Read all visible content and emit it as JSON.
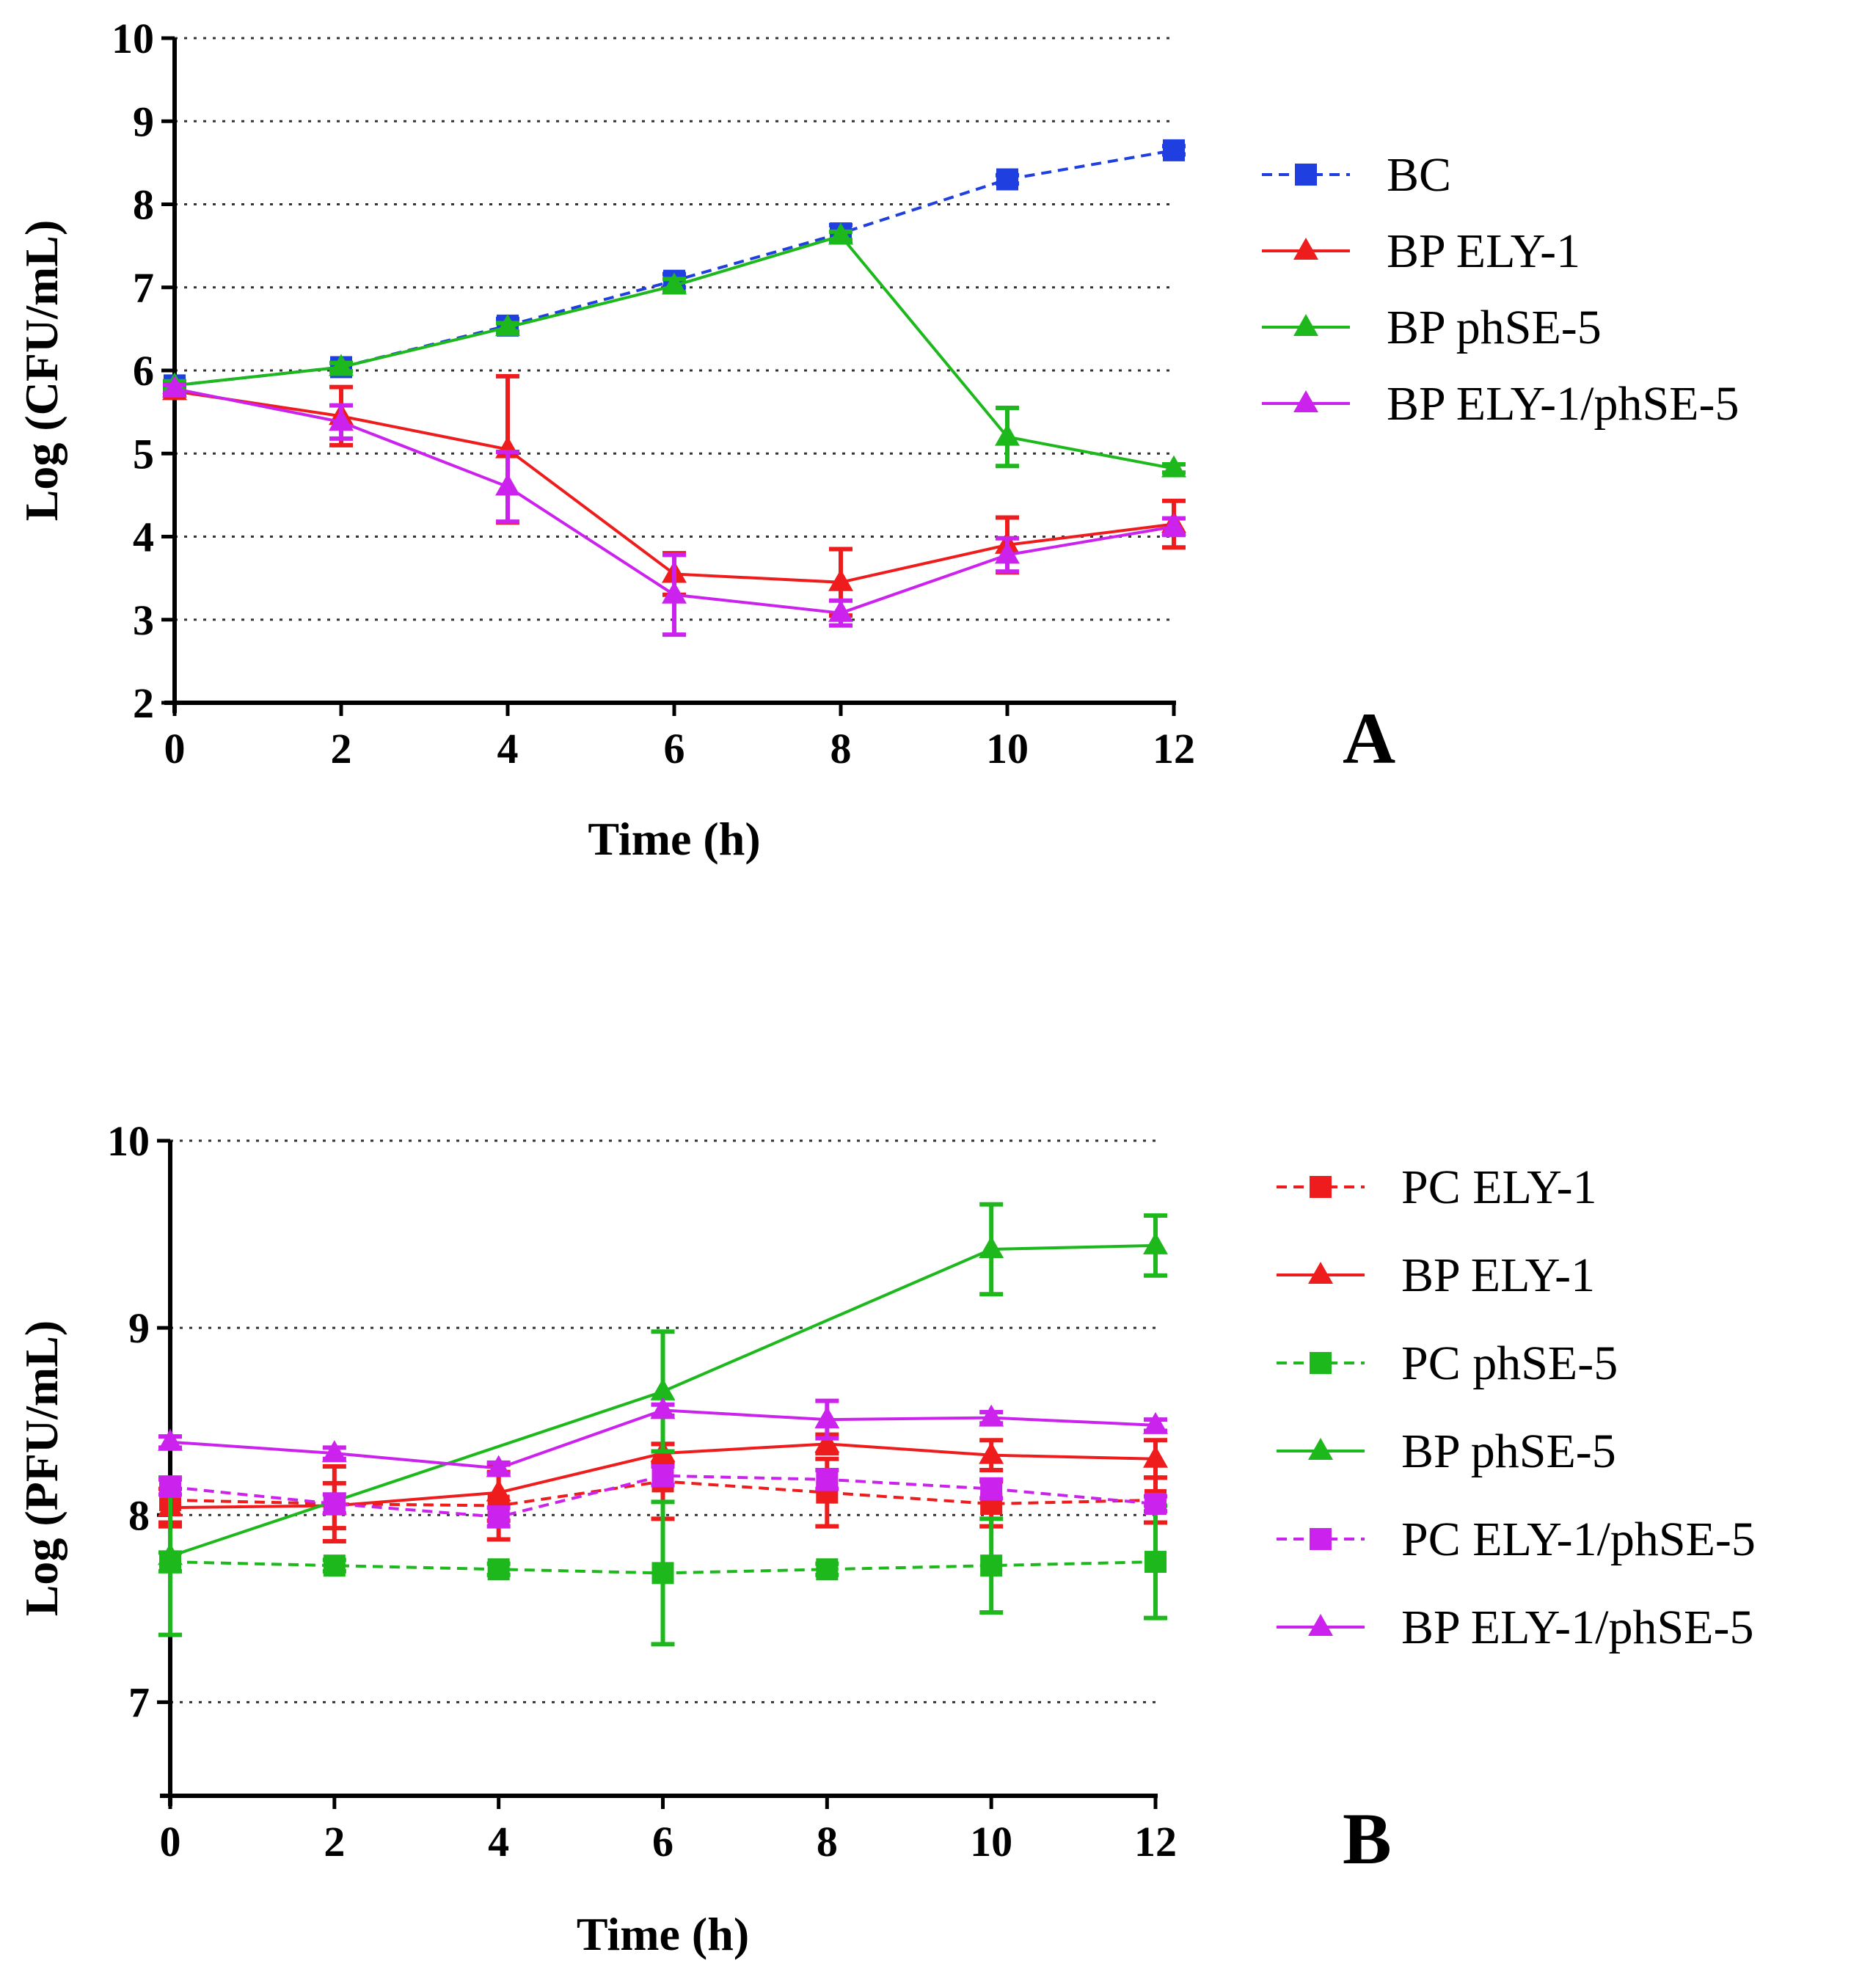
{
  "chart_data": [
    {
      "type": "line",
      "panel_label": "A",
      "title": "",
      "xlabel": "Time (h)",
      "ylabel": "Log (CFU/mL)",
      "xlim": [
        0,
        12
      ],
      "ylim": [
        2,
        10
      ],
      "xticks": [
        0,
        2,
        4,
        6,
        8,
        10,
        12
      ],
      "yticks": [
        2,
        3,
        4,
        5,
        6,
        7,
        8,
        9,
        10
      ],
      "grid": "horizontal dotted",
      "legend_position": "right",
      "series": [
        {
          "name": "BC",
          "color": "#1f3fe0",
          "dashed": true,
          "marker": "square",
          "x": [
            0,
            2,
            4,
            6,
            8,
            10,
            12
          ],
          "values": [
            5.82,
            6.04,
            6.54,
            7.08,
            7.65,
            8.3,
            8.65
          ],
          "err": [
            0.05,
            0.05,
            0.08,
            0.08,
            0.1,
            0.05,
            0.05
          ]
        },
        {
          "name": "BP ELY-1",
          "color": "#ee1c1c",
          "dashed": false,
          "marker": "triangle",
          "x": [
            0,
            2,
            4,
            6,
            8,
            10,
            12
          ],
          "values": [
            5.75,
            5.45,
            5.05,
            3.55,
            3.45,
            3.9,
            4.15
          ],
          "err": [
            0.05,
            0.35,
            0.88,
            0.25,
            0.4,
            0.33,
            0.28
          ]
        },
        {
          "name": "BP phSE-5",
          "color": "#1cb81c",
          "dashed": false,
          "marker": "triangle",
          "x": [
            0,
            2,
            4,
            6,
            8,
            10,
            12
          ],
          "values": [
            5.82,
            6.04,
            6.52,
            7.02,
            7.62,
            5.2,
            4.82
          ],
          "err": [
            0.05,
            0.05,
            0.05,
            0.08,
            0.05,
            0.35,
            0.05
          ]
        },
        {
          "name": "BP ELY-1/phSE-5",
          "color": "#cc22ee",
          "dashed": false,
          "marker": "triangle",
          "x": [
            0,
            2,
            4,
            6,
            8,
            10,
            12
          ],
          "values": [
            5.78,
            5.38,
            4.6,
            3.3,
            3.08,
            3.78,
            4.12
          ],
          "err": [
            0.05,
            0.2,
            0.42,
            0.48,
            0.15,
            0.2,
            0.1
          ]
        }
      ]
    },
    {
      "type": "line",
      "panel_label": "B",
      "title": "",
      "xlabel": "Time (h)",
      "ylabel": "Log (PFU/mL)",
      "xlim": [
        0,
        12
      ],
      "ylim": [
        6.5,
        10
      ],
      "xticks": [
        0,
        2,
        4,
        6,
        8,
        10,
        12
      ],
      "yticks": [
        7,
        8,
        9,
        10
      ],
      "grid": "horizontal dotted",
      "legend_position": "right",
      "series": [
        {
          "name": "PC ELY-1",
          "color": "#ee1c1c",
          "dashed": true,
          "marker": "square",
          "x": [
            0,
            2,
            4,
            6,
            8,
            10,
            12
          ],
          "values": [
            8.08,
            8.06,
            8.05,
            8.18,
            8.12,
            8.06,
            8.08
          ],
          "err": [
            0.12,
            0.2,
            0.18,
            0.2,
            0.18,
            0.12,
            0.12
          ]
        },
        {
          "name": "BP ELY-1",
          "color": "#ee1c1c",
          "dashed": false,
          "marker": "triangle",
          "x": [
            0,
            2,
            4,
            6,
            8,
            10,
            12
          ],
          "values": [
            8.04,
            8.05,
            8.12,
            8.33,
            8.38,
            8.32,
            8.3
          ],
          "err": [
            0.1,
            0.12,
            0.15,
            0.05,
            0.05,
            0.08,
            0.1
          ]
        },
        {
          "name": "PC phSE-5",
          "color": "#1cb81c",
          "dashed": true,
          "marker": "square",
          "x": [
            0,
            2,
            4,
            6,
            8,
            10,
            12
          ],
          "values": [
            7.75,
            7.73,
            7.71,
            7.69,
            7.71,
            7.73,
            7.75
          ],
          "err": [
            0.05,
            0.03,
            0.03,
            0.38,
            0.03,
            0.25,
            0.3
          ]
        },
        {
          "name": "BP phSE-5",
          "color": "#1cb81c",
          "dashed": false,
          "marker": "triangle",
          "x": [
            0,
            6,
            10,
            12
          ],
          "values": [
            7.78,
            8.66,
            9.42,
            9.44
          ],
          "err": [
            0.42,
            0.32,
            0.24,
            0.16
          ]
        },
        {
          "name": "PC ELY-1/phSE-5",
          "color": "#cc22ee",
          "dashed": true,
          "marker": "square",
          "x": [
            0,
            2,
            4,
            6,
            8,
            10,
            12
          ],
          "values": [
            8.15,
            8.06,
            7.99,
            8.21,
            8.19,
            8.14,
            8.06
          ],
          "err": [
            0.04,
            0.05,
            0.05,
            0.05,
            0.05,
            0.05,
            0.04
          ]
        },
        {
          "name": "BP ELY-1/phSE-5",
          "color": "#cc22ee",
          "dashed": false,
          "marker": "triangle",
          "x": [
            0,
            2,
            4,
            6,
            8,
            10,
            12
          ],
          "values": [
            8.39,
            8.33,
            8.25,
            8.56,
            8.51,
            8.52,
            8.48
          ],
          "err": [
            0.03,
            0.03,
            0.03,
            0.03,
            0.1,
            0.03,
            0.03
          ]
        }
      ]
    }
  ]
}
